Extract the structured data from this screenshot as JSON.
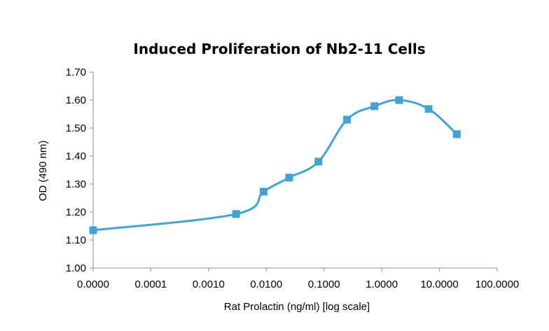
{
  "chart_data": {
    "type": "line",
    "title": "Induced Proliferation of Nb2-11 Cells",
    "xlabel": "Rat Prolactin (ng/ml) [log scale]",
    "ylabel": "OD (490 nm)",
    "x_scale": "log",
    "ylim": [
      1.0,
      1.7
    ],
    "y_ticks": [
      "1.00",
      "1.10",
      "1.20",
      "1.30",
      "1.40",
      "1.50",
      "1.60",
      "1.70"
    ],
    "x_ticks": [
      "0.0000",
      "0.0001",
      "0.0010",
      "0.0100",
      "0.1000",
      "1.0000",
      "10.0000",
      "100.0000"
    ],
    "grid": false,
    "legend": "none",
    "series": [
      {
        "color": "#3fa3d8",
        "marker": "square",
        "smooth": true,
        "points": [
          {
            "x": "0.0000",
            "y": 1.135
          },
          {
            "x": 0.003,
            "y": 1.193
          },
          {
            "x": 0.009,
            "y": 1.273
          },
          {
            "x": 0.025,
            "y": 1.323
          },
          {
            "x": 0.08,
            "y": 1.38
          },
          {
            "x": 0.25,
            "y": 1.53
          },
          {
            "x": 0.75,
            "y": 1.578
          },
          {
            "x": 2.0,
            "y": 1.6
          },
          {
            "x": 6.5,
            "y": 1.568
          },
          {
            "x": 20.0,
            "y": 1.478
          }
        ]
      }
    ]
  }
}
